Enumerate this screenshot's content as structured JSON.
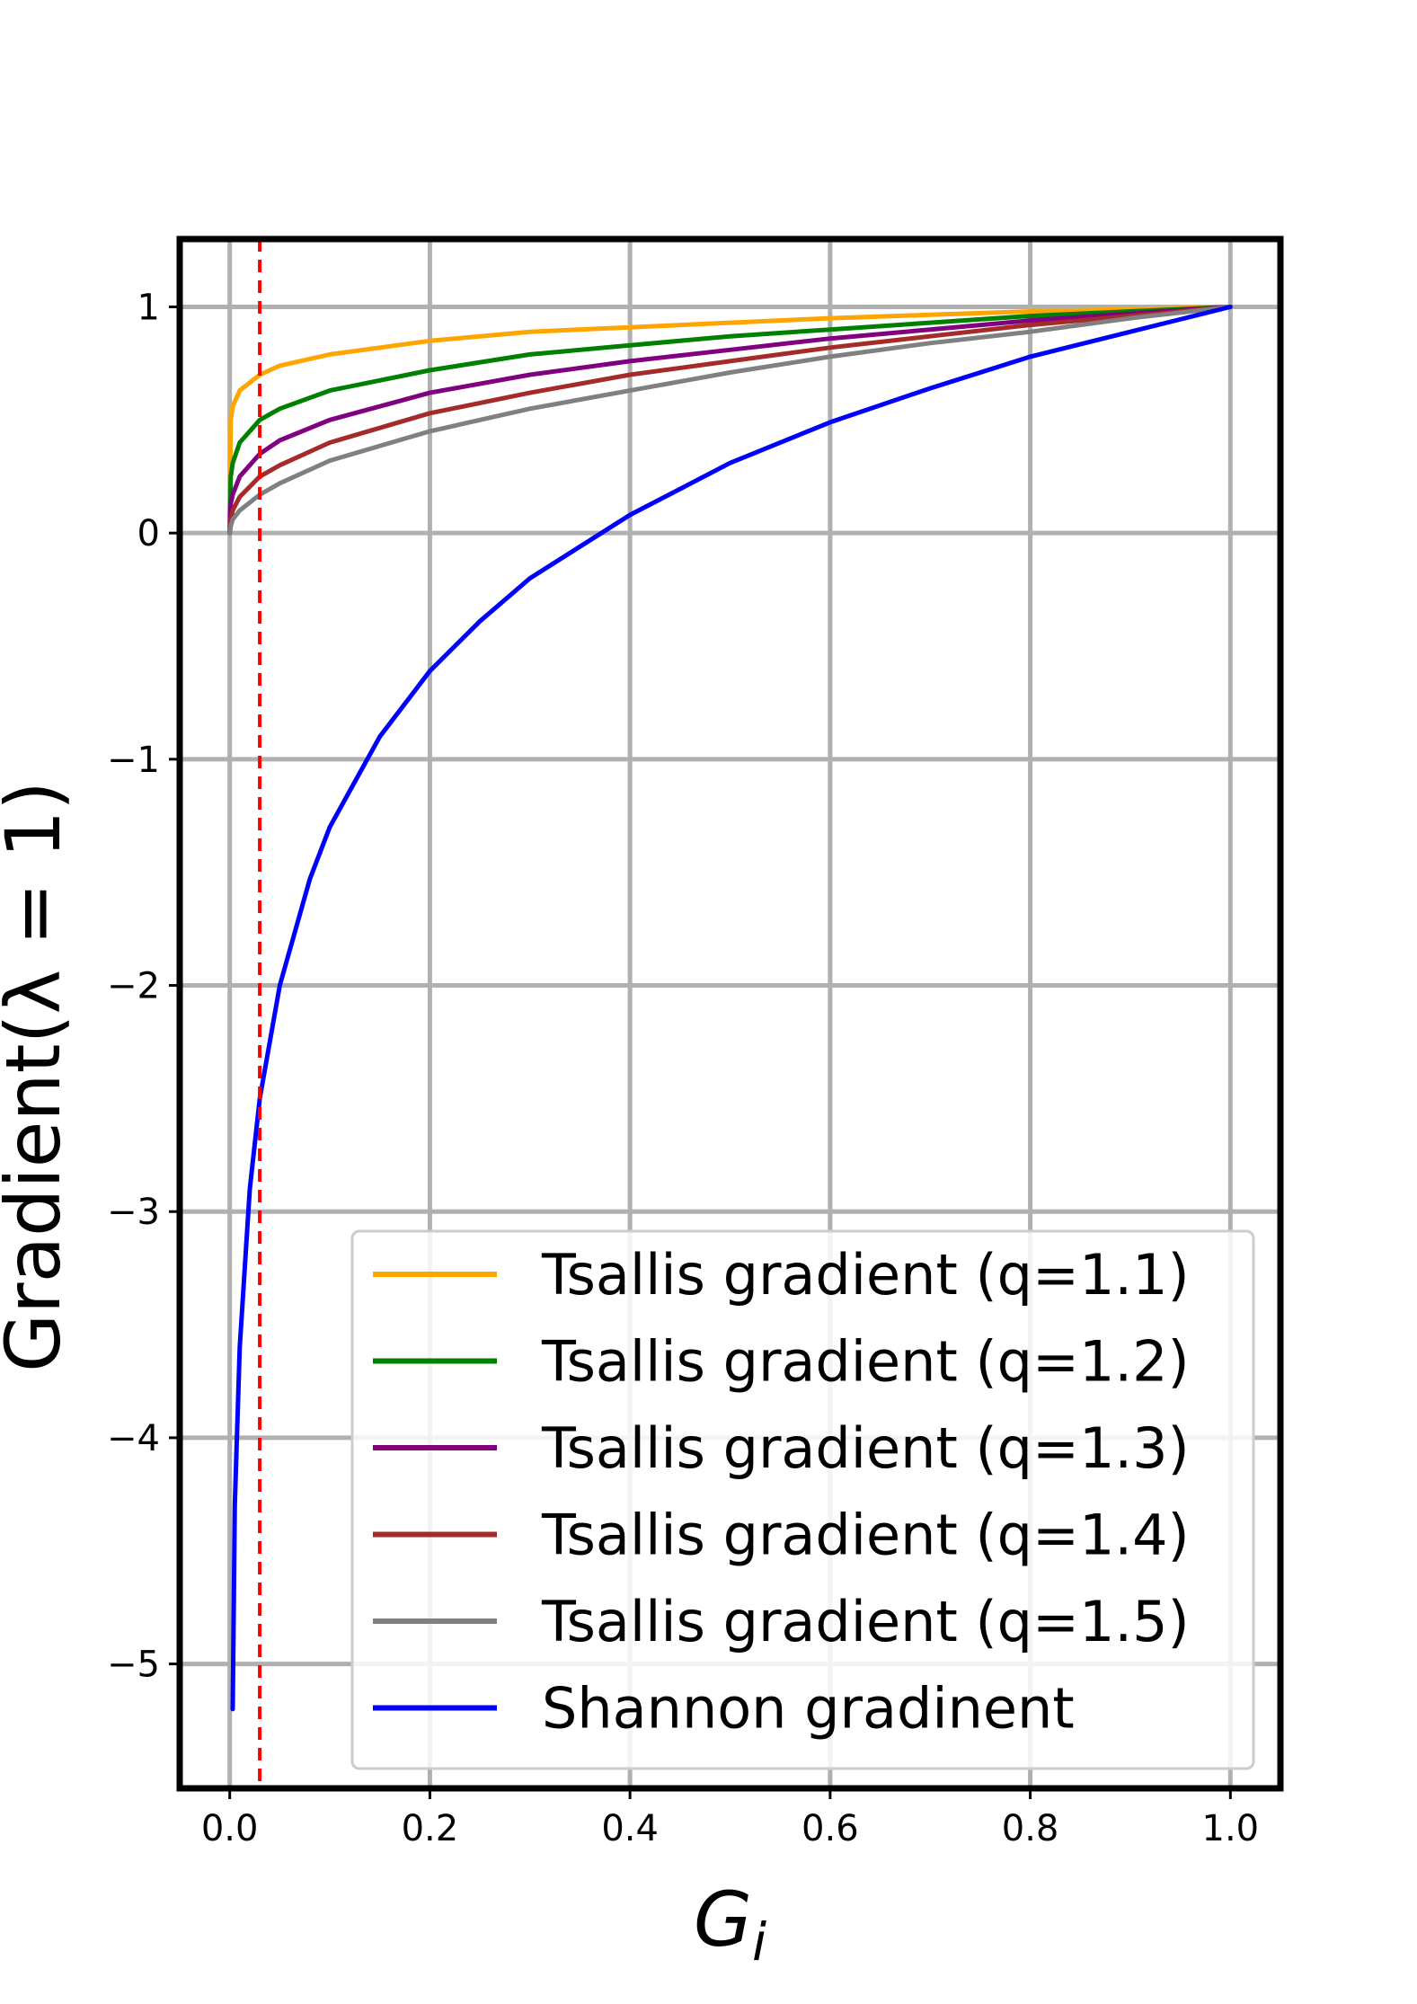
{
  "chart_data": {
    "type": "line",
    "title": "",
    "xlabel_main": "G",
    "xlabel_sub": "i",
    "ylabel": "Gradient(λ = 1)",
    "xlim": [
      -0.05,
      1.05
    ],
    "ylim": [
      -5.55,
      1.3
    ],
    "xticks": [
      {
        "value": 0.0,
        "label": "0.0"
      },
      {
        "value": 0.2,
        "label": "0.2"
      },
      {
        "value": 0.4,
        "label": "0.4"
      },
      {
        "value": 0.6,
        "label": "0.6"
      },
      {
        "value": 0.8,
        "label": "0.8"
      },
      {
        "value": 1.0,
        "label": "1.0"
      }
    ],
    "yticks": [
      {
        "value": 1,
        "label": "1"
      },
      {
        "value": 0,
        "label": "0"
      },
      {
        "value": -1,
        "label": "−1"
      },
      {
        "value": -2,
        "label": "−2"
      },
      {
        "value": -3,
        "label": "−3"
      },
      {
        "value": -4,
        "label": "−4"
      },
      {
        "value": -5,
        "label": "−5"
      }
    ],
    "grid": true,
    "legend_position": "lower-right",
    "reference_line": {
      "orientation": "vertical",
      "x": 0.03,
      "color": "#ff0000",
      "style": "dashed"
    },
    "series": [
      {
        "name": "Tsallis gradient (q=1.1)",
        "color": "#ffa500",
        "x": [
          0.0,
          0.001,
          0.003,
          0.01,
          0.03,
          0.05,
          0.1,
          0.2,
          0.3,
          0.4,
          0.5,
          0.6,
          0.7,
          0.8,
          0.9,
          1.0
        ],
        "y": [
          0.0,
          0.5,
          0.56,
          0.63,
          0.7,
          0.74,
          0.79,
          0.85,
          0.89,
          0.91,
          0.93,
          0.95,
          0.965,
          0.98,
          0.99,
          1.0
        ]
      },
      {
        "name": "Tsallis gradient (q=1.2)",
        "color": "#008000",
        "x": [
          0.0,
          0.001,
          0.003,
          0.01,
          0.03,
          0.05,
          0.1,
          0.2,
          0.3,
          0.4,
          0.5,
          0.6,
          0.7,
          0.8,
          0.9,
          1.0
        ],
        "y": [
          0.0,
          0.25,
          0.31,
          0.4,
          0.5,
          0.55,
          0.63,
          0.72,
          0.79,
          0.83,
          0.87,
          0.9,
          0.93,
          0.96,
          0.98,
          1.0
        ]
      },
      {
        "name": "Tsallis gradient (q=1.3)",
        "color": "#800080",
        "x": [
          0.0,
          0.001,
          0.003,
          0.01,
          0.03,
          0.05,
          0.1,
          0.2,
          0.3,
          0.4,
          0.5,
          0.6,
          0.7,
          0.8,
          0.9,
          1.0
        ],
        "y": [
          0.0,
          0.13,
          0.17,
          0.25,
          0.35,
          0.41,
          0.5,
          0.62,
          0.7,
          0.76,
          0.81,
          0.86,
          0.9,
          0.94,
          0.97,
          1.0
        ]
      },
      {
        "name": "Tsallis gradient (q=1.4)",
        "color": "#a52a2a",
        "x": [
          0.0,
          0.001,
          0.003,
          0.01,
          0.03,
          0.05,
          0.1,
          0.2,
          0.3,
          0.4,
          0.5,
          0.6,
          0.7,
          0.8,
          0.9,
          1.0
        ],
        "y": [
          0.0,
          0.06,
          0.1,
          0.16,
          0.25,
          0.3,
          0.4,
          0.53,
          0.62,
          0.7,
          0.76,
          0.82,
          0.87,
          0.92,
          0.96,
          1.0
        ]
      },
      {
        "name": "Tsallis gradient (q=1.5)",
        "color": "#808080",
        "x": [
          0.0,
          0.001,
          0.003,
          0.01,
          0.03,
          0.05,
          0.1,
          0.2,
          0.3,
          0.4,
          0.5,
          0.6,
          0.7,
          0.8,
          0.9,
          1.0
        ],
        "y": [
          0.0,
          0.03,
          0.06,
          0.1,
          0.17,
          0.22,
          0.32,
          0.45,
          0.55,
          0.63,
          0.71,
          0.78,
          0.84,
          0.89,
          0.95,
          1.0
        ]
      },
      {
        "name": "Shannon gradinent",
        "color": "#0000ff",
        "x": [
          0.003,
          0.005,
          0.01,
          0.02,
          0.03,
          0.05,
          0.08,
          0.1,
          0.15,
          0.2,
          0.25,
          0.3,
          0.4,
          0.5,
          0.6,
          0.7,
          0.8,
          0.9,
          1.0
        ],
        "y": [
          -5.2,
          -4.3,
          -3.6,
          -2.9,
          -2.5,
          -2.0,
          -1.53,
          -1.3,
          -0.9,
          -0.61,
          -0.39,
          -0.2,
          0.08,
          0.31,
          0.49,
          0.64,
          0.78,
          0.89,
          1.0
        ]
      }
    ]
  }
}
